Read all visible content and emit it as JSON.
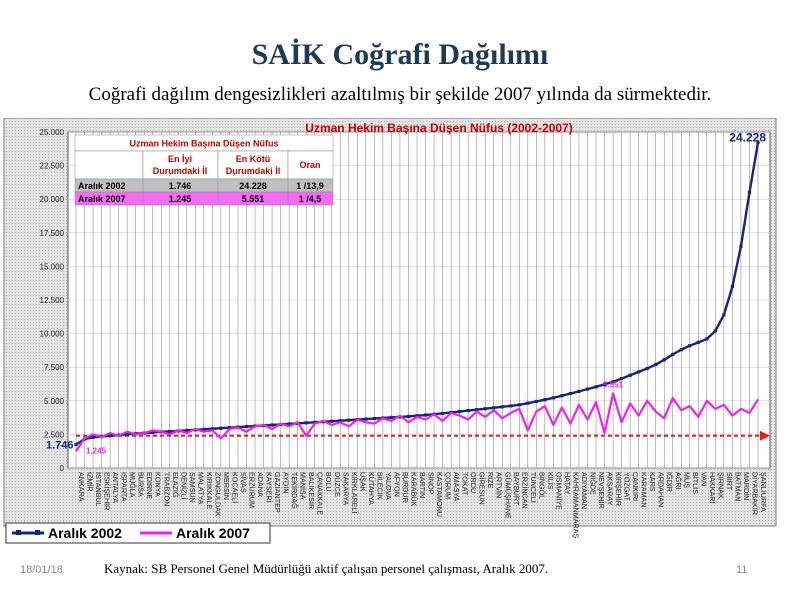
{
  "slide": {
    "title": "SAİK Coğrafi Dağılımı",
    "subtitle": "Coğrafi dağılım dengesizlikleri azaltılmış bir şekilde 2007 yılında da sürmektedir.",
    "date": "18/01/18",
    "source": "Kaynak: SB Personel Genel Müdürlüğü aktif çalışan personel çalışması, Aralık 2007.",
    "page_number": "11"
  },
  "colors": {
    "series_2002": "#1a237e",
    "series_2007": "#ee22ee",
    "reference": "#e8201c",
    "title_red": "#c00000"
  },
  "chart_data": {
    "type": "line",
    "title": "Uzman Hekim Başına Düşen Nüfus (2002-2007)",
    "ylim": [
      0,
      25000
    ],
    "y_ticks": [
      "0",
      "2.500",
      "5.000",
      "7.500",
      "10.000",
      "12.500",
      "15.000",
      "17.500",
      "20.000",
      "22.500",
      "25.000"
    ],
    "x": [
      "ANKARA",
      "İZMİR",
      "İSTANBUL",
      "ESKİŞEHİR",
      "ANTALYA",
      "ISPARTA",
      "MUĞLA",
      "BURSA",
      "EDİRNE",
      "KONYA",
      "TRABZON",
      "ELAZIĞ",
      "DENİZLİ",
      "SAMSUN",
      "MALATYA",
      "KIRIKKALE",
      "ZONGULDAK",
      "MERSİN",
      "KOCAELİ",
      "SİVAS",
      "ERZURUM",
      "ADANA",
      "KAYSERİ",
      "GAZİANTEP",
      "AYDIN",
      "TEKİRDAĞ",
      "MANİSA",
      "BALIKESİR",
      "ÇANAKKALE",
      "BOLU",
      "DÜZCE",
      "SAKARYA",
      "KIRKLARELİ",
      "UŞAK",
      "KÜTAHYA",
      "BİLECİK",
      "YALOVA",
      "AFYON",
      "BURDUR",
      "KARABÜK",
      "BARTIN",
      "SİNOP",
      "KASTAMONU",
      "ÇORUM",
      "AMASYA",
      "TOKAT",
      "ORDU",
      "GİRESUN",
      "RİZE",
      "ARTVİN",
      "GÜMÜŞHANE",
      "BAYBURT",
      "ERZİNCAN",
      "TUNCELİ",
      "BİNGÖL",
      "KİLİS",
      "OSMANİYE",
      "HATAY",
      "KAHRAMANMARAŞ",
      "ADIYAMAN",
      "NİĞDE",
      "NEVŞEHİR",
      "AKSARAY",
      "KIRŞEHİR",
      "YOZGAT",
      "ÇANKIRI",
      "KARAMAN",
      "KARS",
      "ARDAHAN",
      "IĞDIR",
      "AĞRI",
      "MUŞ",
      "BİTLİS",
      "VAN",
      "HAKKARİ",
      "ŞIRNAK",
      "SİİRT",
      "BATMAN",
      "MARDİN",
      "DİYARBAKIR",
      "ŞANLIURFA"
    ],
    "series": [
      {
        "name": "Aralık 2002",
        "values": [
          1746,
          2150,
          2280,
          2340,
          2400,
          2450,
          2500,
          2550,
          2600,
          2650,
          2690,
          2720,
          2760,
          2800,
          2840,
          2880,
          2920,
          2960,
          3000,
          3040,
          3080,
          3120,
          3160,
          3200,
          3240,
          3280,
          3320,
          3360,
          3400,
          3440,
          3480,
          3520,
          3560,
          3600,
          3640,
          3680,
          3720,
          3760,
          3800,
          3840,
          3890,
          3940,
          4000,
          4060,
          4130,
          4200,
          4270,
          4340,
          4410,
          4480,
          4550,
          4620,
          4700,
          4820,
          4950,
          5080,
          5220,
          5380,
          5540,
          5700,
          5870,
          6040,
          6220,
          6420,
          6650,
          6900,
          7150,
          7400,
          7700,
          8050,
          8450,
          8800,
          9100,
          9350,
          9600,
          10200,
          11400,
          13500,
          16500,
          20500,
          24228
        ]
      },
      {
        "name": "Aralık 2007",
        "values": [
          1245,
          2200,
          2500,
          2300,
          2600,
          2400,
          2700,
          2500,
          2600,
          2800,
          2700,
          2500,
          2800,
          2600,
          2900,
          2700,
          2800,
          2200,
          2900,
          3000,
          2700,
          3100,
          3200,
          2900,
          3300,
          3100,
          3400,
          2400,
          3300,
          3500,
          3200,
          3400,
          3100,
          3600,
          3400,
          3300,
          3700,
          3500,
          3900,
          3400,
          3800,
          3600,
          4000,
          3500,
          4100,
          3900,
          3600,
          4200,
          3800,
          4300,
          3700,
          4100,
          4400,
          2800,
          4200,
          4600,
          3200,
          4500,
          3300,
          4700,
          3600,
          4900,
          2600,
          5551,
          3400,
          4800,
          3900,
          5000,
          4200,
          3700,
          5200,
          4300,
          4600,
          3800,
          5000,
          4400,
          4700,
          3900,
          4400,
          4100,
          5100
        ]
      }
    ],
    "reference_line_value": 2400,
    "annotations": {
      "start_2002": "1.746",
      "start_2007": "1.245",
      "end_2002": "24.228",
      "peak_2007": "5.551"
    },
    "legend": {
      "position": "bottom-left",
      "entries": [
        "Aralık 2002",
        "Aralık 2007"
      ]
    },
    "grid": true,
    "inset_table": {
      "title": "Uzman Hekim Başına Düşen Nüfus",
      "headers": [
        "",
        "En İyi\nDurumdaki İl",
        "En Kötü\nDurumdaki İl",
        "Oran"
      ],
      "rows": [
        [
          "Aralık 2002",
          "1.746",
          "24.228",
          "1 /13,9"
        ],
        [
          "Aralık 2007",
          "1.245",
          "5.551",
          "1 /4,5"
        ]
      ]
    }
  }
}
